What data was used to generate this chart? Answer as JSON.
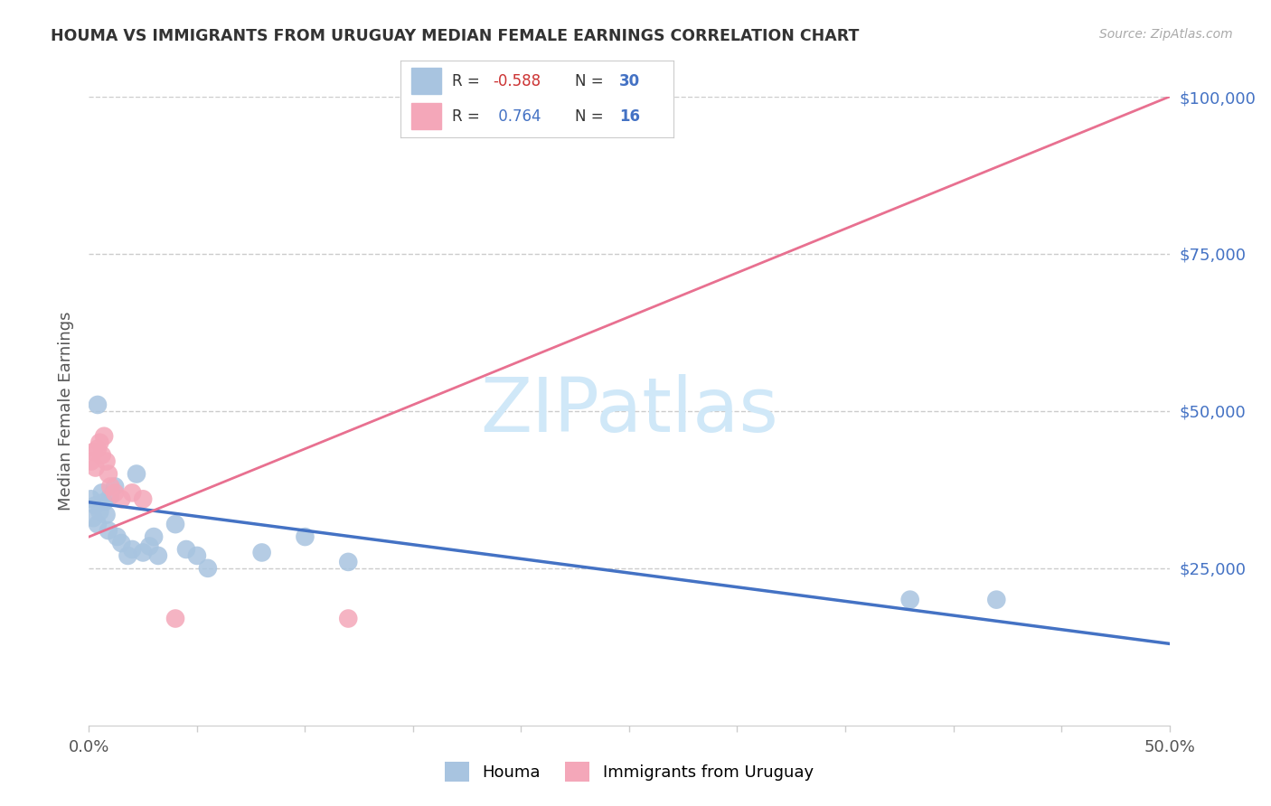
{
  "title": "HOUMA VS IMMIGRANTS FROM URUGUAY MEDIAN FEMALE EARNINGS CORRELATION CHART",
  "source": "Source: ZipAtlas.com",
  "ylabel": "Median Female Earnings",
  "xlim": [
    0.0,
    0.5
  ],
  "ylim": [
    0,
    100000
  ],
  "blue_color": "#a8c4e0",
  "pink_color": "#f4a7b9",
  "blue_line_color": "#4472c4",
  "pink_line_color": "#e87090",
  "watermark_color": "#d0e8f8",
  "axis_color": "#cccccc",
  "text_color": "#555555",
  "right_tick_color": "#4472c4",
  "title_color": "#333333",
  "source_color": "#aaaaaa",
  "houma_x": [
    0.001,
    0.002,
    0.003,
    0.004,
    0.005,
    0.006,
    0.007,
    0.008,
    0.009,
    0.01,
    0.012,
    0.013,
    0.015,
    0.018,
    0.02,
    0.022,
    0.025,
    0.028,
    0.03,
    0.032,
    0.04,
    0.045,
    0.05,
    0.055,
    0.08,
    0.1,
    0.12,
    0.38,
    0.42,
    0.004
  ],
  "houma_y": [
    36000,
    33000,
    35000,
    32000,
    34000,
    37000,
    35500,
    33500,
    31000,
    36500,
    38000,
    30000,
    29000,
    27000,
    28000,
    40000,
    27500,
    28500,
    30000,
    27000,
    32000,
    28000,
    27000,
    25000,
    27500,
    30000,
    26000,
    20000,
    20000,
    51000
  ],
  "uruguay_x": [
    0.001,
    0.002,
    0.003,
    0.004,
    0.005,
    0.006,
    0.007,
    0.008,
    0.009,
    0.01,
    0.012,
    0.015,
    0.02,
    0.025,
    0.04,
    0.12
  ],
  "uruguay_y": [
    42000,
    43500,
    41000,
    44000,
    45000,
    43000,
    46000,
    42000,
    40000,
    38000,
    37000,
    36000,
    37000,
    36000,
    17000,
    17000
  ],
  "blue_line_x0": 0.0,
  "blue_line_y0": 35500,
  "blue_line_x1": 0.5,
  "blue_line_y1": 13000,
  "pink_line_x0": 0.0,
  "pink_line_y0": 30000,
  "pink_line_x1": 0.5,
  "pink_line_y1": 100000
}
